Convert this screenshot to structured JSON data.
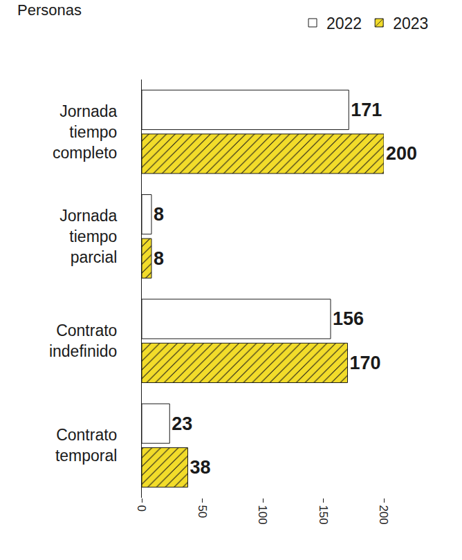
{
  "chart_data": {
    "type": "bar",
    "orientation": "horizontal",
    "xlabel": "Personas",
    "categories": [
      "Jornada tiempo completo",
      "Jornada tiempo parcial",
      "Contrato indefinido",
      "Contrato temporal"
    ],
    "series": [
      {
        "name": "2022",
        "color": "#ffffff",
        "marker": "solid",
        "values": [
          171,
          8,
          156,
          23
        ]
      },
      {
        "name": "2023",
        "color": "#f2dc2a",
        "marker": "hatched",
        "values": [
          200,
          8,
          170,
          38
        ]
      }
    ],
    "xlim": [
      0,
      200
    ],
    "xticks": [
      0,
      50,
      100,
      150,
      200
    ],
    "grid": false,
    "legend": "top-right",
    "data_labels": true
  }
}
